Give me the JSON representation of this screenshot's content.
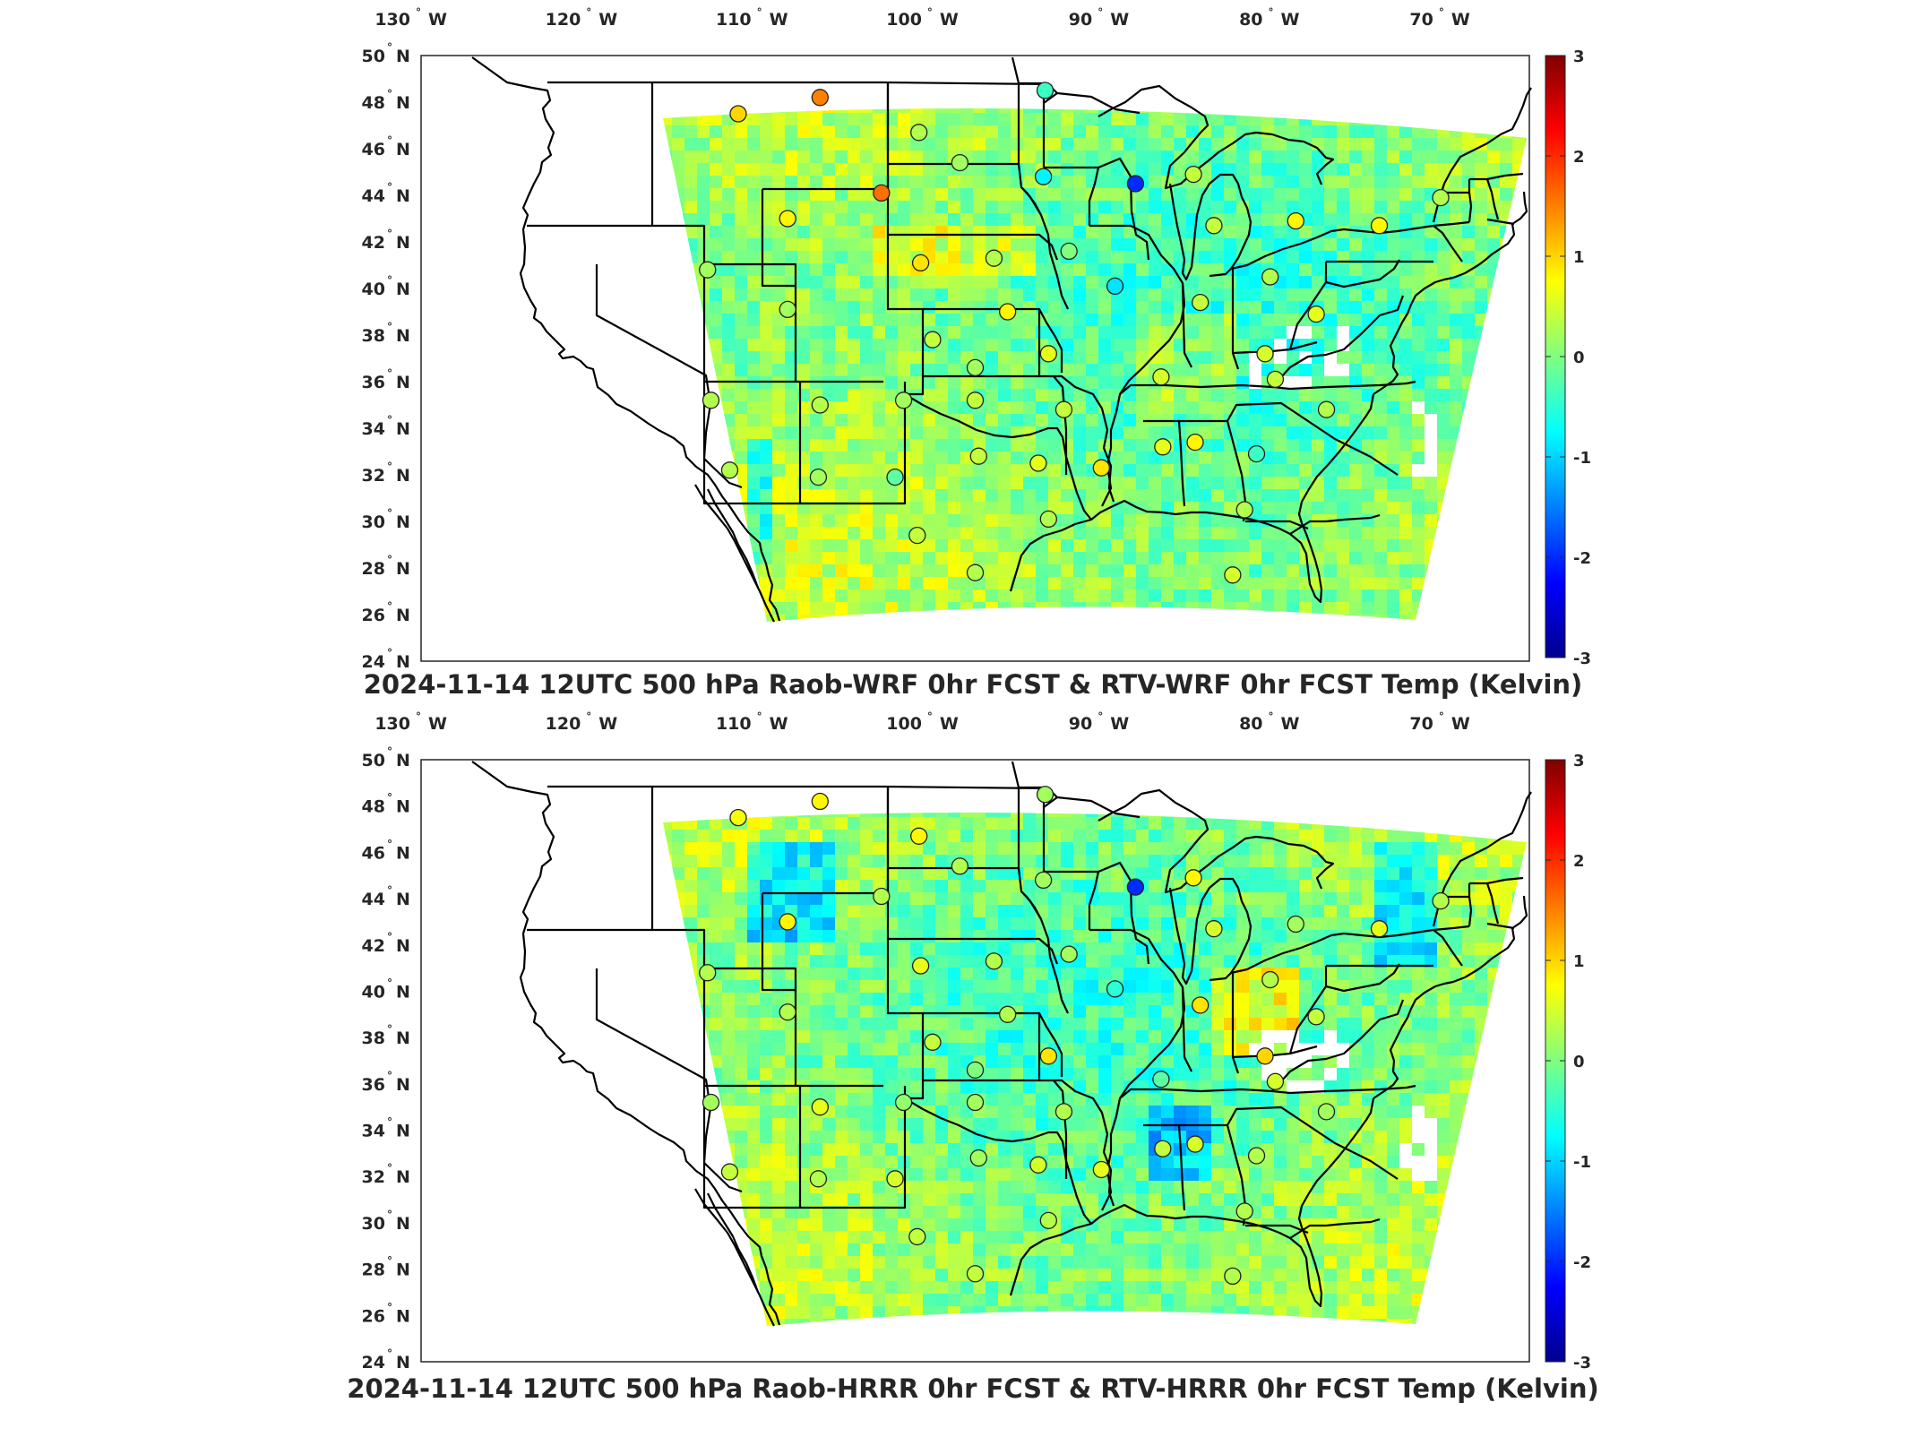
{
  "panels": [
    {
      "title": "2024-11-14 12UTC 500 hPa Raob-WRF 0hr FCST & RTV-WRF 0hr FCST Temp (Kelvin)",
      "stations": [
        {
          "lon": -111.4,
          "lat": 47.5,
          "v": 1.0
        },
        {
          "lon": -106.6,
          "lat": 48.2,
          "v": 1.5
        },
        {
          "lon": -103.0,
          "lat": 44.1,
          "v": 1.6
        },
        {
          "lon": -108.5,
          "lat": 43.0,
          "v": 0.8
        },
        {
          "lon": -100.8,
          "lat": 46.7,
          "v": 0.3
        },
        {
          "lon": -98.4,
          "lat": 45.4,
          "v": 0.2
        },
        {
          "lon": -93.4,
          "lat": 48.5,
          "v": -0.4
        },
        {
          "lon": -93.5,
          "lat": 44.8,
          "v": -0.8
        },
        {
          "lon": -88.1,
          "lat": 44.5,
          "v": -2.0
        },
        {
          "lon": -84.7,
          "lat": 44.9,
          "v": 0.4
        },
        {
          "lon": -83.5,
          "lat": 42.7,
          "v": 0.4
        },
        {
          "lon": -78.7,
          "lat": 42.9,
          "v": 0.8
        },
        {
          "lon": -73.8,
          "lat": 42.7,
          "v": 0.8
        },
        {
          "lon": -70.2,
          "lat": 43.9,
          "v": 0.3
        },
        {
          "lon": -113.2,
          "lat": 40.8,
          "v": 0.2
        },
        {
          "lon": -108.5,
          "lat": 39.1,
          "v": 0.2
        },
        {
          "lon": -100.7,
          "lat": 41.1,
          "v": 0.9
        },
        {
          "lon": -96.4,
          "lat": 41.3,
          "v": 0.3
        },
        {
          "lon": -92.0,
          "lat": 41.6,
          "v": 0.0
        },
        {
          "lon": -89.3,
          "lat": 40.1,
          "v": -0.9
        },
        {
          "lon": -84.3,
          "lat": 39.4,
          "v": 0.4
        },
        {
          "lon": -80.2,
          "lat": 40.5,
          "v": 0.3
        },
        {
          "lon": -77.5,
          "lat": 38.9,
          "v": 0.6
        },
        {
          "lon": -95.6,
          "lat": 39.0,
          "v": 0.8
        },
        {
          "lon": -100.0,
          "lat": 37.8,
          "v": 0.4
        },
        {
          "lon": -93.2,
          "lat": 37.2,
          "v": 0.6
        },
        {
          "lon": -97.5,
          "lat": 36.6,
          "v": 0.2
        },
        {
          "lon": -86.6,
          "lat": 36.2,
          "v": 0.5
        },
        {
          "lon": -80.5,
          "lat": 37.2,
          "v": 0.5
        },
        {
          "lon": -79.9,
          "lat": 36.1,
          "v": 0.4
        },
        {
          "lon": -113.0,
          "lat": 35.2,
          "v": 0.3
        },
        {
          "lon": -106.6,
          "lat": 35.0,
          "v": 0.3
        },
        {
          "lon": -101.7,
          "lat": 35.2,
          "v": 0.2
        },
        {
          "lon": -97.5,
          "lat": 35.2,
          "v": 0.4
        },
        {
          "lon": -92.3,
          "lat": 34.8,
          "v": 0.4
        },
        {
          "lon": -76.9,
          "lat": 34.8,
          "v": 0.3
        },
        {
          "lon": -111.9,
          "lat": 32.2,
          "v": 0.3
        },
        {
          "lon": -106.7,
          "lat": 31.9,
          "v": 0.2
        },
        {
          "lon": -102.2,
          "lat": 31.9,
          "v": -0.2
        },
        {
          "lon": -97.3,
          "lat": 32.8,
          "v": 0.4
        },
        {
          "lon": -93.8,
          "lat": 32.5,
          "v": 0.6
        },
        {
          "lon": -90.1,
          "lat": 32.3,
          "v": 0.9
        },
        {
          "lon": -86.5,
          "lat": 33.2,
          "v": 0.6
        },
        {
          "lon": -84.6,
          "lat": 33.4,
          "v": 0.8
        },
        {
          "lon": -81.0,
          "lat": 32.9,
          "v": -0.4
        },
        {
          "lon": -100.9,
          "lat": 29.4,
          "v": 0.4
        },
        {
          "lon": -97.5,
          "lat": 27.8,
          "v": 0.3
        },
        {
          "lon": -93.2,
          "lat": 30.1,
          "v": 0.3
        },
        {
          "lon": -81.7,
          "lat": 30.5,
          "v": 0.3
        },
        {
          "lon": -82.4,
          "lat": 27.7,
          "v": 0.5
        }
      ]
    },
    {
      "title": "2024-11-14 12UTC 500 hPa Raob-HRRR 0hr FCST & RTV-HRRR 0hr FCST Temp (Kelvin)",
      "stations": [
        {
          "lon": -111.4,
          "lat": 47.5,
          "v": 0.7
        },
        {
          "lon": -106.6,
          "lat": 48.2,
          "v": 0.8
        },
        {
          "lon": -103.0,
          "lat": 44.1,
          "v": 0.3
        },
        {
          "lon": -108.5,
          "lat": 43.0,
          "v": 0.8
        },
        {
          "lon": -100.8,
          "lat": 46.7,
          "v": 0.8
        },
        {
          "lon": -98.4,
          "lat": 45.4,
          "v": 0.3
        },
        {
          "lon": -93.4,
          "lat": 48.5,
          "v": 0.2
        },
        {
          "lon": -93.5,
          "lat": 44.8,
          "v": 0.2
        },
        {
          "lon": -88.1,
          "lat": 44.5,
          "v": -2.0
        },
        {
          "lon": -84.7,
          "lat": 44.9,
          "v": 0.8
        },
        {
          "lon": -83.5,
          "lat": 42.7,
          "v": 0.5
        },
        {
          "lon": -78.7,
          "lat": 42.9,
          "v": 0.2
        },
        {
          "lon": -73.8,
          "lat": 42.7,
          "v": 0.6
        },
        {
          "lon": -70.2,
          "lat": 43.9,
          "v": 0.3
        },
        {
          "lon": -113.2,
          "lat": 40.8,
          "v": 0.3
        },
        {
          "lon": -108.5,
          "lat": 39.1,
          "v": 0.3
        },
        {
          "lon": -100.7,
          "lat": 41.1,
          "v": 0.6
        },
        {
          "lon": -96.4,
          "lat": 41.3,
          "v": 0.3
        },
        {
          "lon": -92.0,
          "lat": 41.6,
          "v": 0.2
        },
        {
          "lon": -89.3,
          "lat": 40.1,
          "v": -0.5
        },
        {
          "lon": -84.3,
          "lat": 39.4,
          "v": 0.9
        },
        {
          "lon": -80.2,
          "lat": 40.5,
          "v": 0.3
        },
        {
          "lon": -77.5,
          "lat": 38.9,
          "v": 0.4
        },
        {
          "lon": -95.6,
          "lat": 39.0,
          "v": 0.3
        },
        {
          "lon": -100.0,
          "lat": 37.8,
          "v": 0.4
        },
        {
          "lon": -93.2,
          "lat": 37.2,
          "v": 0.9
        },
        {
          "lon": -97.5,
          "lat": 36.6,
          "v": 0.0
        },
        {
          "lon": -86.6,
          "lat": 36.2,
          "v": -0.2
        },
        {
          "lon": -80.5,
          "lat": 37.2,
          "v": 1.0
        },
        {
          "lon": -79.9,
          "lat": 36.1,
          "v": 0.5
        },
        {
          "lon": -113.0,
          "lat": 35.2,
          "v": 0.2
        },
        {
          "lon": -106.6,
          "lat": 35.0,
          "v": 0.6
        },
        {
          "lon": -101.7,
          "lat": 35.2,
          "v": 0.1
        },
        {
          "lon": -97.5,
          "lat": 35.2,
          "v": 0.2
        },
        {
          "lon": -92.3,
          "lat": 34.8,
          "v": 0.3
        },
        {
          "lon": -76.9,
          "lat": 34.8,
          "v": 0.2
        },
        {
          "lon": -111.9,
          "lat": 32.2,
          "v": 0.4
        },
        {
          "lon": -106.7,
          "lat": 31.9,
          "v": 0.3
        },
        {
          "lon": -102.2,
          "lat": 31.9,
          "v": 0.5
        },
        {
          "lon": -97.3,
          "lat": 32.8,
          "v": 0.2
        },
        {
          "lon": -93.8,
          "lat": 32.5,
          "v": 0.5
        },
        {
          "lon": -90.1,
          "lat": 32.3,
          "v": 0.6
        },
        {
          "lon": -86.5,
          "lat": 33.2,
          "v": 0.4
        },
        {
          "lon": -84.6,
          "lat": 33.4,
          "v": 0.5
        },
        {
          "lon": -81.0,
          "lat": 32.9,
          "v": 0.3
        },
        {
          "lon": -100.9,
          "lat": 29.4,
          "v": 0.4
        },
        {
          "lon": -97.5,
          "lat": 27.8,
          "v": 0.4
        },
        {
          "lon": -93.2,
          "lat": 30.1,
          "v": 0.3
        },
        {
          "lon": -81.7,
          "lat": 30.5,
          "v": 0.3
        },
        {
          "lon": -82.4,
          "lat": 27.7,
          "v": 0.3
        }
      ]
    }
  ],
  "axes": {
    "lon_labels": [
      {
        "value": -130,
        "num": "130",
        "dir": "W"
      },
      {
        "value": -120,
        "num": "120",
        "dir": "W"
      },
      {
        "value": -110,
        "num": "110",
        "dir": "W"
      },
      {
        "value": -100,
        "num": "100",
        "dir": "W"
      },
      {
        "value": -90,
        "num": "90",
        "dir": "W"
      },
      {
        "value": -80,
        "num": "80",
        "dir": "W"
      },
      {
        "value": -70,
        "num": "70",
        "dir": "W"
      }
    ],
    "lat_labels": [
      {
        "value": 50,
        "num": "50",
        "dir": "N"
      },
      {
        "value": 48,
        "num": "48",
        "dir": "N"
      },
      {
        "value": 46,
        "num": "46",
        "dir": "N"
      },
      {
        "value": 44,
        "num": "44",
        "dir": "N"
      },
      {
        "value": 42,
        "num": "42",
        "dir": "N"
      },
      {
        "value": 40,
        "num": "40",
        "dir": "N"
      },
      {
        "value": 38,
        "num": "38",
        "dir": "N"
      },
      {
        "value": 36,
        "num": "36",
        "dir": "N"
      },
      {
        "value": 34,
        "num": "34",
        "dir": "N"
      },
      {
        "value": 32,
        "num": "32",
        "dir": "N"
      },
      {
        "value": 30,
        "num": "30",
        "dir": "N"
      },
      {
        "value": 28,
        "num": "28",
        "dir": "N"
      },
      {
        "value": 26,
        "num": "26",
        "dir": "N"
      },
      {
        "value": 24,
        "num": "24",
        "dir": "N"
      }
    ],
    "degree_symbol": "°"
  },
  "colorbar": {
    "min": -3,
    "max": 3,
    "ticks": [
      "3",
      "2",
      "1",
      "0",
      "-1",
      "-2",
      "-3"
    ],
    "tick_values": [
      3,
      2,
      1,
      0,
      -1,
      -2,
      -3
    ],
    "colormap": "jet"
  },
  "colors": {
    "map_background": "#ffffff",
    "boundary_lines": "#000000",
    "frame": "#262626"
  }
}
